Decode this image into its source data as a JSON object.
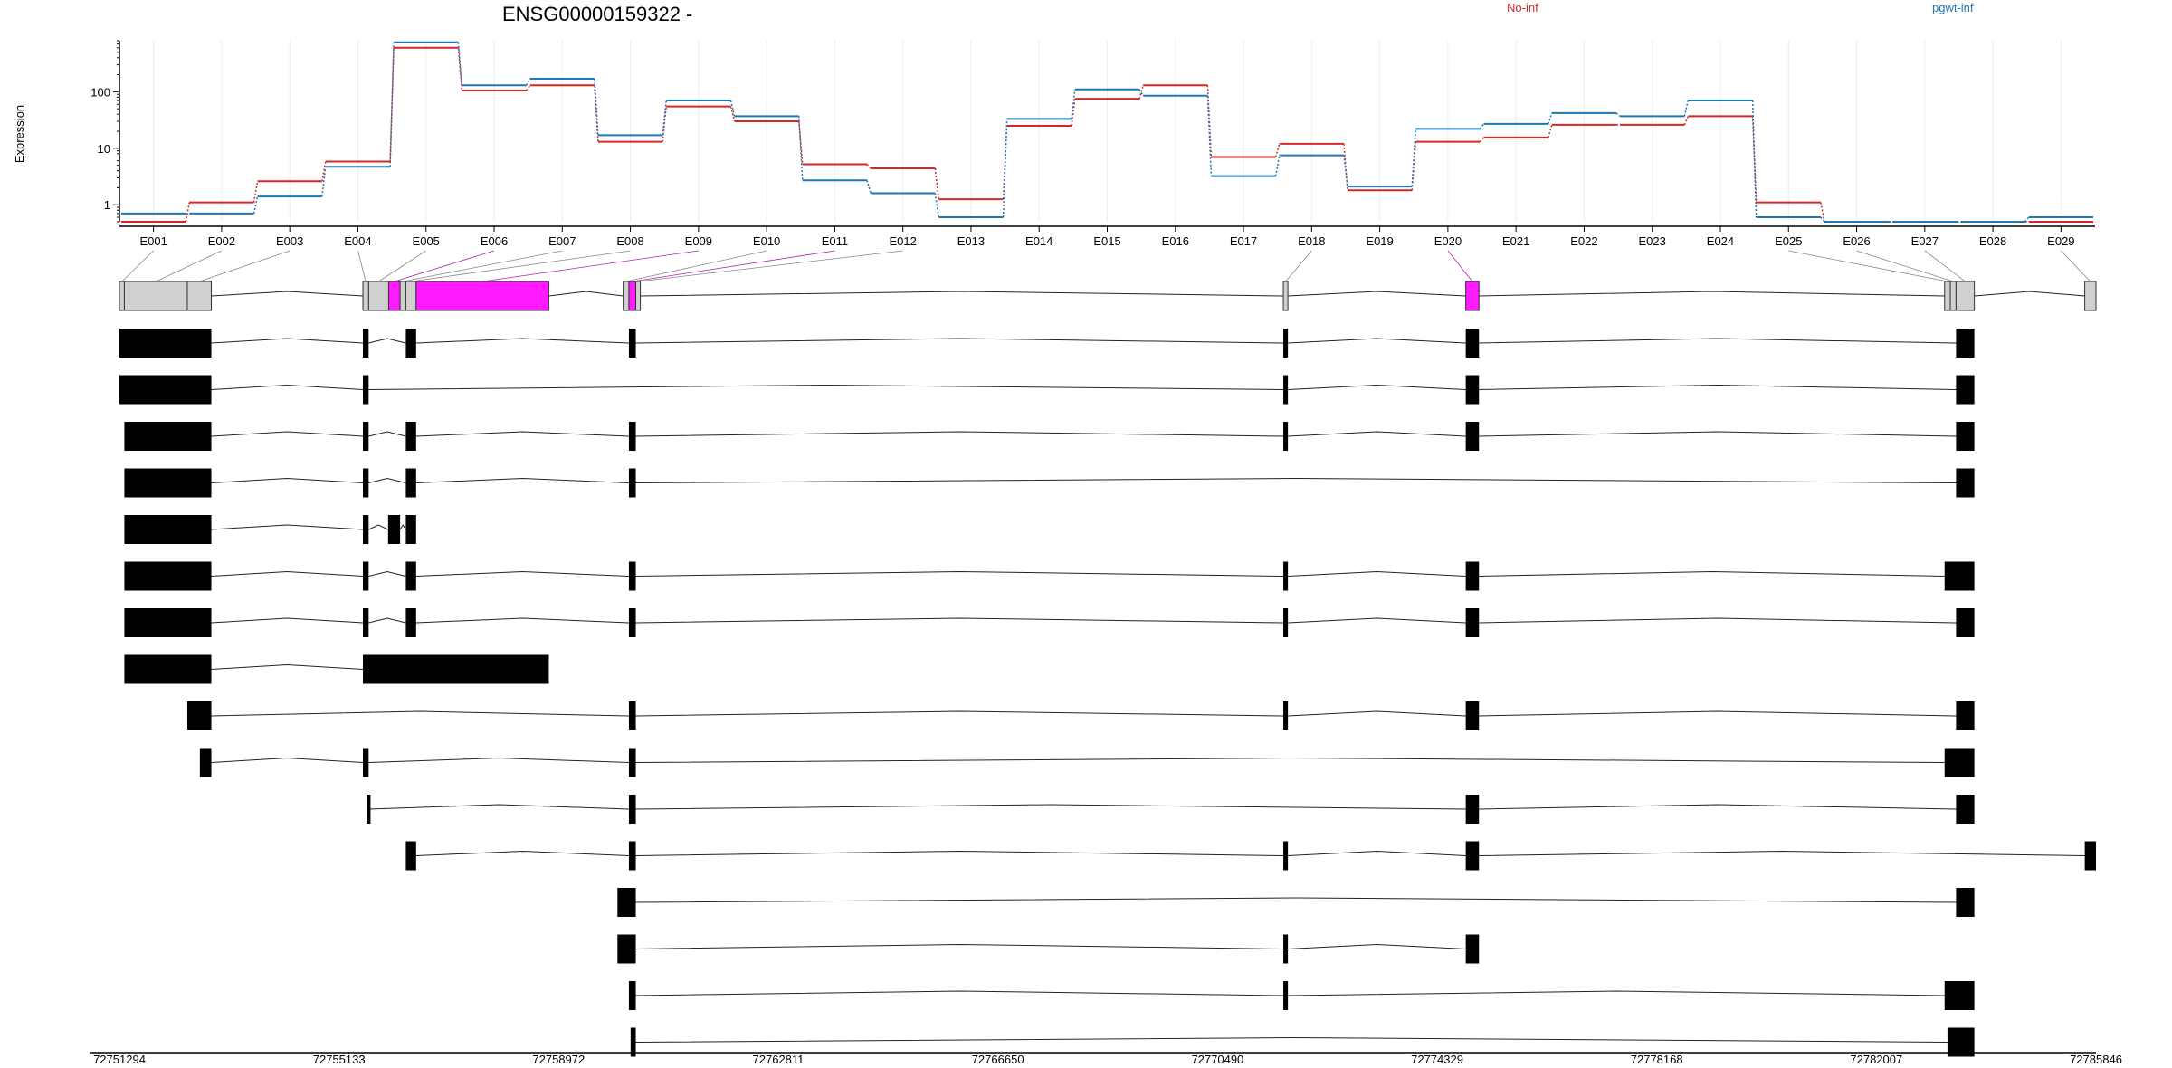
{
  "chart_data": {
    "type": "line",
    "title": "ENSG00000159322 -",
    "ylabel": "Expression",
    "yscale": "log",
    "yticks": [
      1,
      10,
      100
    ],
    "ytick_labels": [
      "1",
      "10",
      "100"
    ],
    "ylim": [
      0.5,
      800
    ],
    "categories": [
      "E001",
      "E002",
      "E003",
      "E004",
      "E005",
      "E006",
      "E007",
      "E008",
      "E009",
      "E010",
      "E011",
      "E012",
      "E013",
      "E014",
      "E015",
      "E016",
      "E017",
      "E018",
      "E019",
      "E020",
      "E021",
      "E022",
      "E023",
      "E024",
      "E025",
      "E026",
      "E027",
      "E028",
      "E029"
    ],
    "series": [
      {
        "name": "No-inf",
        "color": "#d62728",
        "values": [
          0.5,
          1.1,
          2.6,
          5.8,
          600,
          105,
          130,
          13,
          55,
          30,
          5.2,
          4.4,
          1.25,
          25,
          75,
          130,
          7,
          12,
          1.8,
          13,
          15.5,
          26,
          26,
          37,
          1.1,
          0.5,
          0.5,
          0.5,
          0.5
        ]
      },
      {
        "name": "pgwt-inf",
        "color": "#1f77b4",
        "values": [
          0.7,
          0.7,
          1.4,
          4.7,
          750,
          130,
          170,
          17,
          70,
          37,
          2.7,
          1.6,
          0.6,
          33,
          110,
          85,
          3.2,
          7.5,
          2.1,
          22,
          27,
          42,
          37,
          70,
          0.6,
          0.5,
          0.5,
          0.5,
          0.6
        ]
      }
    ],
    "legend_placement": "top",
    "genome": {
      "x_ticks": [
        72751294,
        72755133,
        72758972,
        72762811,
        72766650,
        72770490,
        72774329,
        72778168,
        72782007,
        72785846
      ],
      "x_tick_labels": [
        "72751294",
        "72755133",
        "72758972",
        "72762811",
        "72766650",
        "72770490",
        "72774329",
        "72778168",
        "72782007",
        "72785846"
      ],
      "range": [
        72751294,
        72785846
      ],
      "gene_model": [
        {
          "exon": "E001",
          "start": 72751294,
          "end": 72751380,
          "highlight": false
        },
        {
          "exon": "E002",
          "start": 72751380,
          "end": 72752480,
          "highlight": false
        },
        {
          "exon": "E003",
          "start": 72752480,
          "end": 72752900,
          "highlight": false
        },
        {
          "exon": "E004",
          "start": 72755550,
          "end": 72755650,
          "highlight": false
        },
        {
          "exon": "E005",
          "start": 72755650,
          "end": 72756000,
          "highlight": false
        },
        {
          "exon": "E006",
          "start": 72756000,
          "end": 72756200,
          "highlight": true
        },
        {
          "exon": "E007",
          "start": 72756200,
          "end": 72756300,
          "highlight": false
        },
        {
          "exon": "E008",
          "start": 72756300,
          "end": 72756480,
          "highlight": false
        },
        {
          "exon": "E009",
          "start": 72756480,
          "end": 72758800,
          "highlight": true
        },
        {
          "exon": "E010",
          "start": 72760100,
          "end": 72760200,
          "highlight": false
        },
        {
          "exon": "E011",
          "start": 72760200,
          "end": 72760320,
          "highlight": true
        },
        {
          "exon": "E012",
          "start": 72760320,
          "end": 72760400,
          "highlight": false
        },
        {
          "exon": "E018",
          "start": 72771640,
          "end": 72771720,
          "highlight": false
        },
        {
          "exon": "E020",
          "start": 72774829,
          "end": 72775060,
          "highlight": true
        },
        {
          "exon": "E025",
          "start": 72783200,
          "end": 72783300,
          "highlight": false
        },
        {
          "exon": "E026",
          "start": 72783300,
          "end": 72783400,
          "highlight": false
        },
        {
          "exon": "E027",
          "start": 72783400,
          "end": 72783720,
          "highlight": false
        },
        {
          "exon": "E029",
          "start": 72785650,
          "end": 72785846,
          "highlight": false
        }
      ],
      "transcripts": [
        [
          [
            72751294,
            72752900
          ],
          [
            72755550,
            72755650
          ],
          [
            72756300,
            72756480
          ],
          [
            72760200,
            72760320
          ],
          [
            72771640,
            72771720
          ],
          [
            72774829,
            72775060
          ],
          [
            72783400,
            72783720
          ]
        ],
        [
          [
            72751294,
            72752900
          ],
          [
            72755550,
            72755650
          ],
          [
            72771640,
            72771720
          ],
          [
            72774829,
            72775060
          ],
          [
            72783400,
            72783720
          ]
        ],
        [
          [
            72751380,
            72752900
          ],
          [
            72755550,
            72755650
          ],
          [
            72756300,
            72756480
          ],
          [
            72760200,
            72760320
          ],
          [
            72771640,
            72771720
          ],
          [
            72774829,
            72775060
          ],
          [
            72783400,
            72783720
          ]
        ],
        [
          [
            72751380,
            72752900
          ],
          [
            72755550,
            72755650
          ],
          [
            72756300,
            72756480
          ],
          [
            72760200,
            72760320
          ],
          [
            72783400,
            72783720
          ]
        ],
        [
          [
            72751380,
            72752900
          ],
          [
            72755550,
            72755650
          ],
          [
            72755990,
            72756200
          ],
          [
            72756300,
            72756480
          ]
        ],
        [
          [
            72751380,
            72752900
          ],
          [
            72755550,
            72755650
          ],
          [
            72756300,
            72756480
          ],
          [
            72760200,
            72760320
          ],
          [
            72771640,
            72771720
          ],
          [
            72774829,
            72775060
          ],
          [
            72783200,
            72783720
          ]
        ],
        [
          [
            72751380,
            72752900
          ],
          [
            72755550,
            72755650
          ],
          [
            72756300,
            72756480
          ],
          [
            72760200,
            72760320
          ],
          [
            72771640,
            72771720
          ],
          [
            72774829,
            72775060
          ],
          [
            72783400,
            72783720
          ]
        ],
        [
          [
            72751380,
            72752900
          ],
          [
            72755550,
            72758800
          ]
        ],
        [
          [
            72752480,
            72752900
          ],
          [
            72760200,
            72760320
          ],
          [
            72771640,
            72771720
          ],
          [
            72774829,
            72775060
          ],
          [
            72783400,
            72783720
          ]
        ],
        [
          [
            72752700,
            72752900
          ],
          [
            72755550,
            72755650
          ],
          [
            72760200,
            72760320
          ],
          [
            72783200,
            72783720
          ]
        ],
        [
          [
            72755620,
            72755650
          ],
          [
            72760200,
            72760320
          ],
          [
            72774829,
            72775060
          ],
          [
            72783400,
            72783720
          ]
        ],
        [
          [
            72756300,
            72756480
          ],
          [
            72760200,
            72760320
          ],
          [
            72771640,
            72771720
          ],
          [
            72774829,
            72775060
          ],
          [
            72785650,
            72785846
          ]
        ],
        [
          [
            72760000,
            72760320
          ],
          [
            72783400,
            72783720
          ]
        ],
        [
          [
            72760000,
            72760320
          ],
          [
            72771640,
            72771720
          ],
          [
            72774829,
            72775060
          ]
        ],
        [
          [
            72760200,
            72760320
          ],
          [
            72771640,
            72771720
          ],
          [
            72783200,
            72783720
          ]
        ],
        [
          [
            72760230,
            72760320
          ],
          [
            72783250,
            72783720
          ]
        ]
      ]
    }
  }
}
